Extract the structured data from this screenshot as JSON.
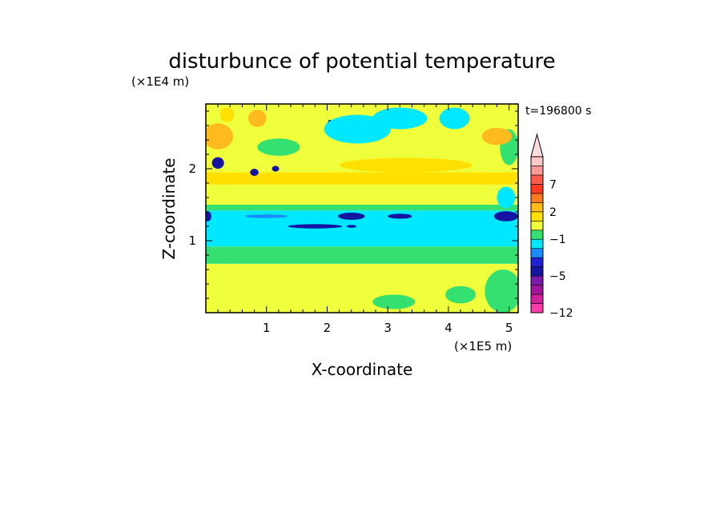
{
  "chart_data": {
    "type": "heatmap",
    "title": "disturbunce of potential temperature",
    "xlabel": "X-coordinate",
    "ylabel": "Z-coordinate",
    "x_unit": "(×1E5 m)",
    "y_unit": "(×1E4 m)",
    "time_label": "t=196800 s",
    "xlim": [
      0,
      5.15
    ],
    "ylim": [
      0,
      2.9
    ],
    "x_ticks": [
      {
        "value": 1,
        "label": "1"
      },
      {
        "value": 2,
        "label": "2"
      },
      {
        "value": 3,
        "label": "3"
      },
      {
        "value": 4,
        "label": "4"
      },
      {
        "value": 5,
        "label": "5"
      }
    ],
    "y_ticks": [
      {
        "value": 1,
        "label": "1"
      },
      {
        "value": 2,
        "label": "2"
      }
    ],
    "colorbar": {
      "levels": [
        -12,
        -11,
        -9,
        -7,
        -5,
        -4,
        -3,
        -2,
        -1,
        0,
        1,
        2,
        3,
        5,
        7,
        8,
        9,
        10
      ],
      "labeled_levels": [
        {
          "value": 7,
          "label": "7"
        },
        {
          "value": 2,
          "label": "2"
        },
        {
          "value": -1,
          "label": "−1"
        },
        {
          "value": -5,
          "label": "−5"
        },
        {
          "value": -12,
          "label": "−12"
        }
      ],
      "colors": [
        "#ff3ca8",
        "#d0209a",
        "#a0169c",
        "#7a1aa8",
        "#1414a0",
        "#2020d0",
        "#1a8cff",
        "#00e8ff",
        "#33e070",
        "#f0ff3c",
        "#ffe000",
        "#ffbb1e",
        "#ff7a1e",
        "#ff3a1e",
        "#ff5a4a",
        "#ff9a9a",
        "#ffc8c8",
        "#ffdcdc"
      ],
      "extend": "max"
    },
    "bands": [
      {
        "z0": 0.0,
        "z1": 0.45,
        "value": 0.2
      },
      {
        "z0": 0.45,
        "z1": 0.68,
        "value": 0.5
      },
      {
        "z0": 0.68,
        "z1": 0.8,
        "value": -0.2
      },
      {
        "z0": 0.8,
        "z1": 0.92,
        "value": -0.5
      },
      {
        "z0": 0.92,
        "z1": 1.42,
        "value": -1.5
      },
      {
        "z0": 1.42,
        "z1": 1.5,
        "value": -0.5
      },
      {
        "z0": 1.5,
        "z1": 1.65,
        "value": 0.2
      },
      {
        "z0": 1.65,
        "z1": 1.78,
        "value": 0.5
      },
      {
        "z0": 1.78,
        "z1": 1.95,
        "value": 1.5
      },
      {
        "z0": 1.95,
        "z1": 2.15,
        "value": 0.5
      },
      {
        "z0": 2.15,
        "z1": 2.35,
        "value": 0.2
      },
      {
        "z0": 2.35,
        "z1": 2.9,
        "value": 0.5
      }
    ],
    "features": [
      {
        "kind": "ellipse",
        "cx": 1.8,
        "cz": 1.2,
        "rx": 0.45,
        "rz": 0.03,
        "value": -4.5
      },
      {
        "kind": "ellipse",
        "cx": 2.4,
        "cz": 1.2,
        "rx": 0.08,
        "rz": 0.02,
        "value": -4.5
      },
      {
        "kind": "ellipse",
        "cx": 2.4,
        "cz": 1.34,
        "rx": 0.22,
        "rz": 0.05,
        "value": -4.5
      },
      {
        "kind": "ellipse",
        "cx": 3.2,
        "cz": 1.34,
        "rx": 0.2,
        "rz": 0.035,
        "value": -4.5
      },
      {
        "kind": "ellipse",
        "cx": 0.03,
        "cz": 1.34,
        "rx": 0.06,
        "rz": 0.07,
        "value": -4.5
      },
      {
        "kind": "ellipse",
        "cx": 1.0,
        "cz": 1.34,
        "rx": 0.35,
        "rz": 0.025,
        "value": -2.5
      },
      {
        "kind": "ellipse",
        "cx": 4.95,
        "cz": 1.34,
        "rx": 0.2,
        "rz": 0.07,
        "value": -4.5
      },
      {
        "kind": "ellipse",
        "cx": 0.2,
        "cz": 2.45,
        "rx": 0.25,
        "rz": 0.18,
        "value": 2.5
      },
      {
        "kind": "ellipse",
        "cx": 0.85,
        "cz": 2.7,
        "rx": 0.15,
        "rz": 0.12,
        "value": 2.5
      },
      {
        "kind": "ellipse",
        "cx": 0.35,
        "cz": 2.75,
        "rx": 0.12,
        "rz": 0.1,
        "value": 1.5
      },
      {
        "kind": "ellipse",
        "cx": 0.2,
        "cz": 2.08,
        "rx": 0.1,
        "rz": 0.08,
        "value": -4.5
      },
      {
        "kind": "ellipse",
        "cx": 0.8,
        "cz": 1.95,
        "rx": 0.07,
        "rz": 0.05,
        "value": -4.5
      },
      {
        "kind": "ellipse",
        "cx": 1.15,
        "cz": 2.0,
        "rx": 0.06,
        "rz": 0.04,
        "value": -4.5
      },
      {
        "kind": "ellipse",
        "cx": 2.05,
        "cz": 2.6,
        "rx": 0.05,
        "rz": 0.08,
        "value": -4.5
      },
      {
        "kind": "ellipse",
        "cx": 2.5,
        "cz": 2.55,
        "rx": 0.55,
        "rz": 0.2,
        "value": -1.5
      },
      {
        "kind": "ellipse",
        "cx": 3.2,
        "cz": 2.7,
        "rx": 0.45,
        "rz": 0.15,
        "value": -1.5
      },
      {
        "kind": "ellipse",
        "cx": 4.1,
        "cz": 2.7,
        "rx": 0.25,
        "rz": 0.15,
        "value": -1.5
      },
      {
        "kind": "ellipse",
        "cx": 5.0,
        "cz": 2.3,
        "rx": 0.15,
        "rz": 0.25,
        "value": -0.5
      },
      {
        "kind": "ellipse",
        "cx": 4.95,
        "cz": 1.6,
        "rx": 0.15,
        "rz": 0.15,
        "value": -1.5
      },
      {
        "kind": "ellipse",
        "cx": 1.2,
        "cz": 2.3,
        "rx": 0.35,
        "rz": 0.12,
        "value": -0.5
      },
      {
        "kind": "ellipse",
        "cx": 3.3,
        "cz": 2.05,
        "rx": 1.1,
        "rz": 0.1,
        "value": 1.5
      },
      {
        "kind": "ellipse",
        "cx": 4.8,
        "cz": 2.45,
        "rx": 0.25,
        "rz": 0.12,
        "value": 2.5
      },
      {
        "kind": "ellipse",
        "cx": 4.9,
        "cz": 0.3,
        "rx": 0.3,
        "rz": 0.3,
        "value": -0.5
      },
      {
        "kind": "ellipse",
        "cx": 0.4,
        "cz": 0.4,
        "rx": 0.25,
        "rz": 0.12,
        "value": 0.5
      },
      {
        "kind": "ellipse",
        "cx": 1.5,
        "cz": 0.35,
        "rx": 0.3,
        "rz": 0.1,
        "value": 0.5
      },
      {
        "kind": "ellipse",
        "cx": 3.1,
        "cz": 0.15,
        "rx": 0.35,
        "rz": 0.1,
        "value": -0.5
      },
      {
        "kind": "ellipse",
        "cx": 4.2,
        "cz": 0.25,
        "rx": 0.25,
        "rz": 0.12,
        "value": -0.5
      },
      {
        "kind": "ellipse",
        "cx": 2.7,
        "cz": 0.35,
        "rx": 0.3,
        "rz": 0.1,
        "value": 0.5
      }
    ]
  }
}
